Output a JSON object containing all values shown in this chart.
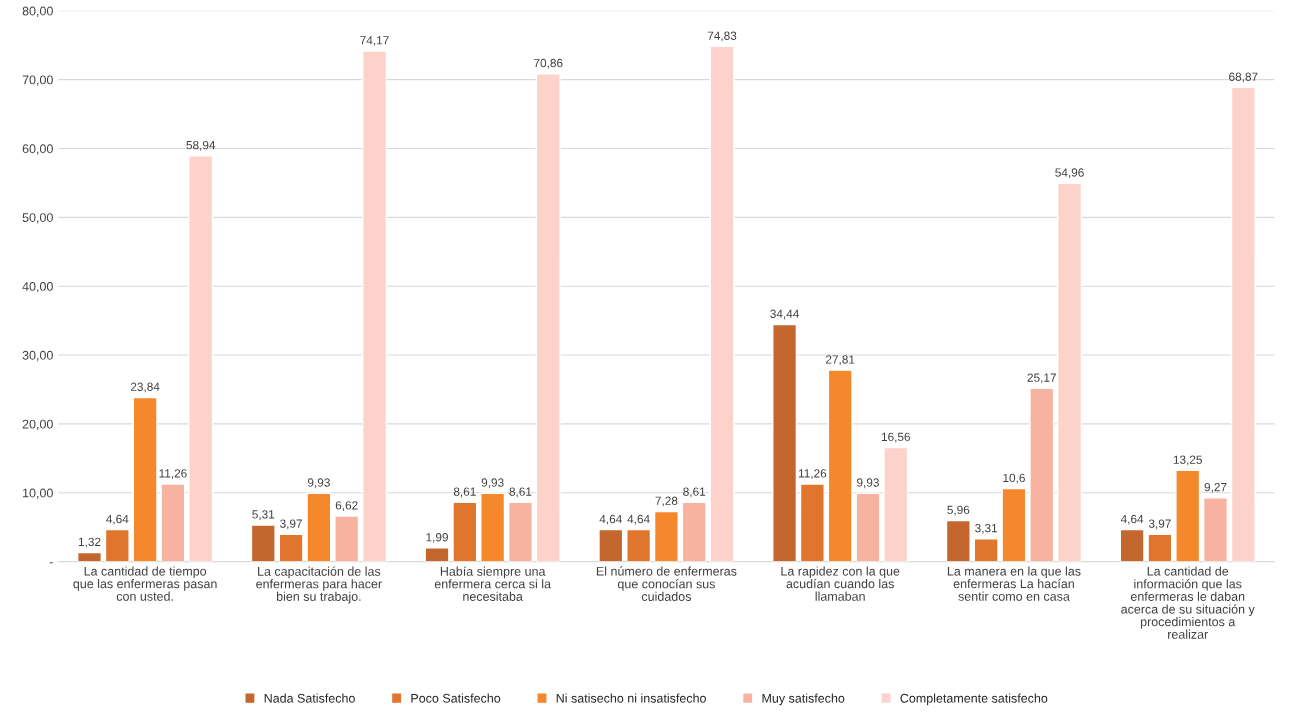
{
  "chart_data": {
    "type": "bar",
    "categories": [
      "La cantidad de tiempo que las enfermeras pasan con usted.",
      "La capacitación de las enfermeras para hacer bien su trabajo.",
      "Había siempre una enfermera cerca si la necesitaba",
      "El número de enfermeras que conocían sus cuidados",
      "La rapidez con la que acudían cuando las llamaban",
      "La manera en la que las enfermeras La hacían sentir como en casa",
      "La cantidad de información que las enfermeras le daban acerca de su situación y procedimientos a realizar"
    ],
    "series": [
      {
        "name": "Nada Satisfecho",
        "color": "#c4672e",
        "values": [
          1.32,
          5.31,
          1.99,
          4.64,
          34.44,
          5.96,
          4.64
        ],
        "value_labels": [
          "1,32",
          "5,31",
          "1,99",
          "4,64",
          "34,44",
          "5,96",
          "4,64"
        ]
      },
      {
        "name": "Poco Satisfecho",
        "color": "#e0762e",
        "values": [
          4.64,
          3.97,
          8.61,
          4.64,
          11.26,
          3.31,
          3.97
        ],
        "value_labels": [
          "4,64",
          "3,97",
          "8,61",
          "4,64",
          "11,26",
          "3,31",
          "3,97"
        ]
      },
      {
        "name": "Ni satisecho ni insatisfecho",
        "color": "#f5872c",
        "values": [
          23.84,
          9.93,
          9.93,
          7.28,
          27.81,
          10.6,
          13.25
        ],
        "value_labels": [
          "23,84",
          "9,93",
          "9,93",
          "7,28",
          "27,81",
          "10,6",
          "13,25"
        ]
      },
      {
        "name": "Muy satisfecho",
        "color": "#f7b3a0",
        "values": [
          11.26,
          6.62,
          8.61,
          8.61,
          9.93,
          25.17,
          9.27
        ],
        "value_labels": [
          "11,26",
          "6,62",
          "8,61",
          "8,61",
          "9,93",
          "25,17",
          "9,27"
        ]
      },
      {
        "name": "Completamente satisfecho",
        "color": "#fcd2ca",
        "values": [
          58.94,
          74.17,
          70.86,
          74.83,
          16.56,
          54.96,
          68.87
        ],
        "value_labels": [
          "58,94",
          "74,17",
          "70,86",
          "74,83",
          "16,56",
          "54,96",
          "68,87"
        ]
      }
    ],
    "ylim": [
      0,
      80
    ],
    "yticks": [
      {
        "value": 0,
        "label": "-"
      },
      {
        "value": 10,
        "label": "10,00"
      },
      {
        "value": 20,
        "label": "20,00"
      },
      {
        "value": 30,
        "label": "30,00"
      },
      {
        "value": 40,
        "label": "40,00"
      },
      {
        "value": 50,
        "label": "50,00"
      },
      {
        "value": 60,
        "label": "60,00"
      },
      {
        "value": 70,
        "label": "70,00"
      },
      {
        "value": 80,
        "label": "80,00"
      }
    ],
    "grid": "y",
    "legend": "bottom"
  }
}
